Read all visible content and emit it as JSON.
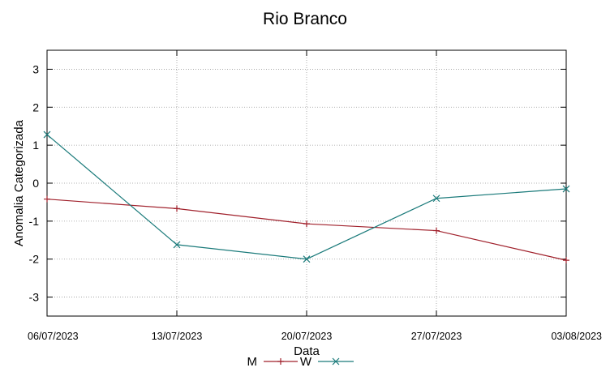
{
  "chart_data": {
    "type": "line",
    "title": "Rio Branco",
    "xlabel": "Data",
    "ylabel": "Anomalia Categorizada",
    "categories": [
      "06/07/2023",
      "13/07/2023",
      "20/07/2023",
      "27/07/2023",
      "03/08/2023"
    ],
    "yticks": [
      "3",
      "2",
      "1",
      "0",
      "-1",
      "-2",
      "-3"
    ],
    "ylim": [
      -3.5,
      3.5
    ],
    "grid": true,
    "legend_position": "bottom-center",
    "series": [
      {
        "name": "M",
        "color": "#a0202b",
        "marker": "plus",
        "values": [
          -0.42,
          -0.67,
          -1.07,
          -1.25,
          -2.03
        ]
      },
      {
        "name": "W",
        "color": "#1a7a7a",
        "marker": "cross",
        "values": [
          1.28,
          -1.62,
          -2.0,
          -0.4,
          -0.15
        ]
      }
    ]
  }
}
